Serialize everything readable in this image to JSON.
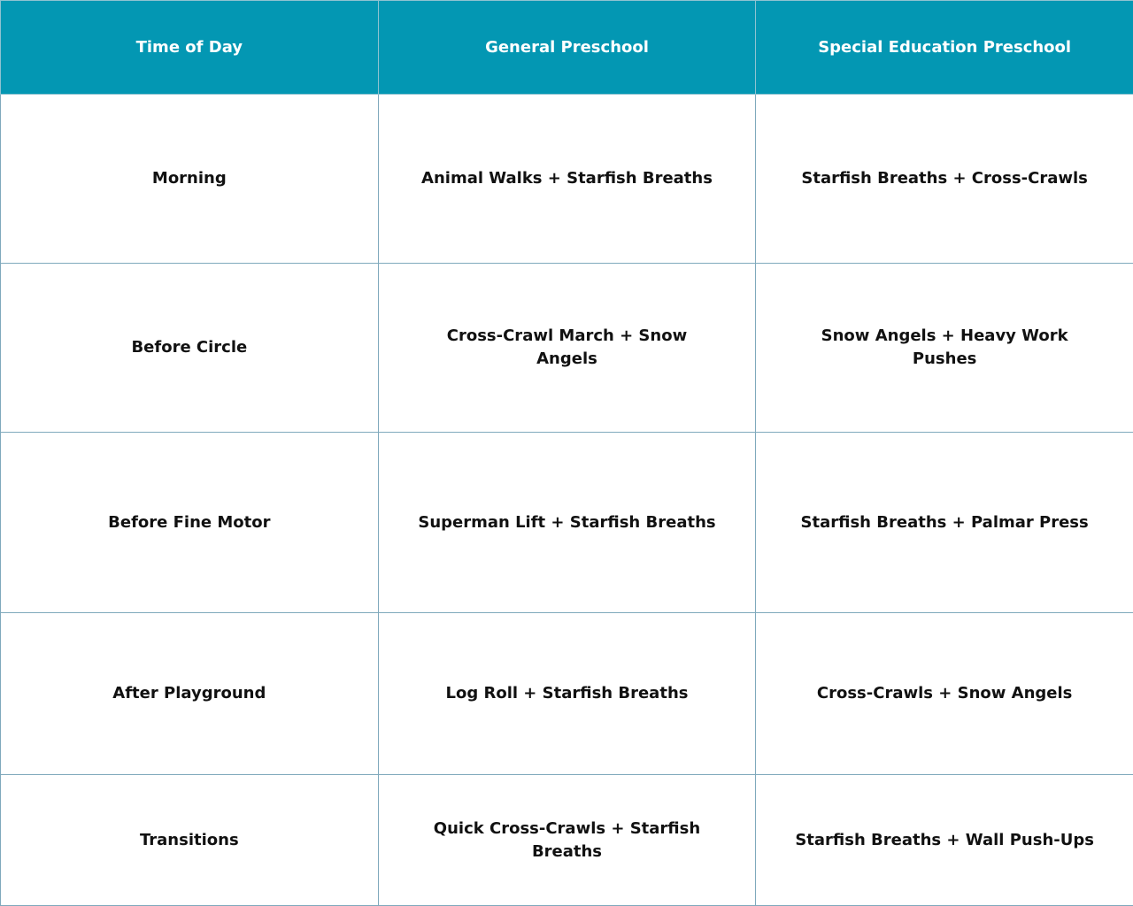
{
  "colors": {
    "header_bg": "#0397b3",
    "header_text": "#ffffff",
    "border": "#7fa9bc"
  },
  "headers": [
    "Time of Day",
    "General Preschool",
    "Special Education Preschool"
  ],
  "rows": [
    [
      "Morning",
      "Animal Walks + Starfish Breaths",
      "Starfish Breaths + Cross-Crawls"
    ],
    [
      "Before Circle",
      "Cross-Crawl March + Snow Angels",
      "Snow Angels + Heavy Work Pushes"
    ],
    [
      "Before Fine Motor",
      "Superman Lift + Starfish Breaths",
      "Starfish Breaths + Palmar Press"
    ],
    [
      "After Playground",
      "Log Roll + Starfish Breaths",
      "Cross-Crawls + Snow Angels"
    ],
    [
      "Transitions",
      "Quick Cross-Crawls + Starfish Breaths",
      "Starfish Breaths + Wall Push-Ups"
    ]
  ]
}
